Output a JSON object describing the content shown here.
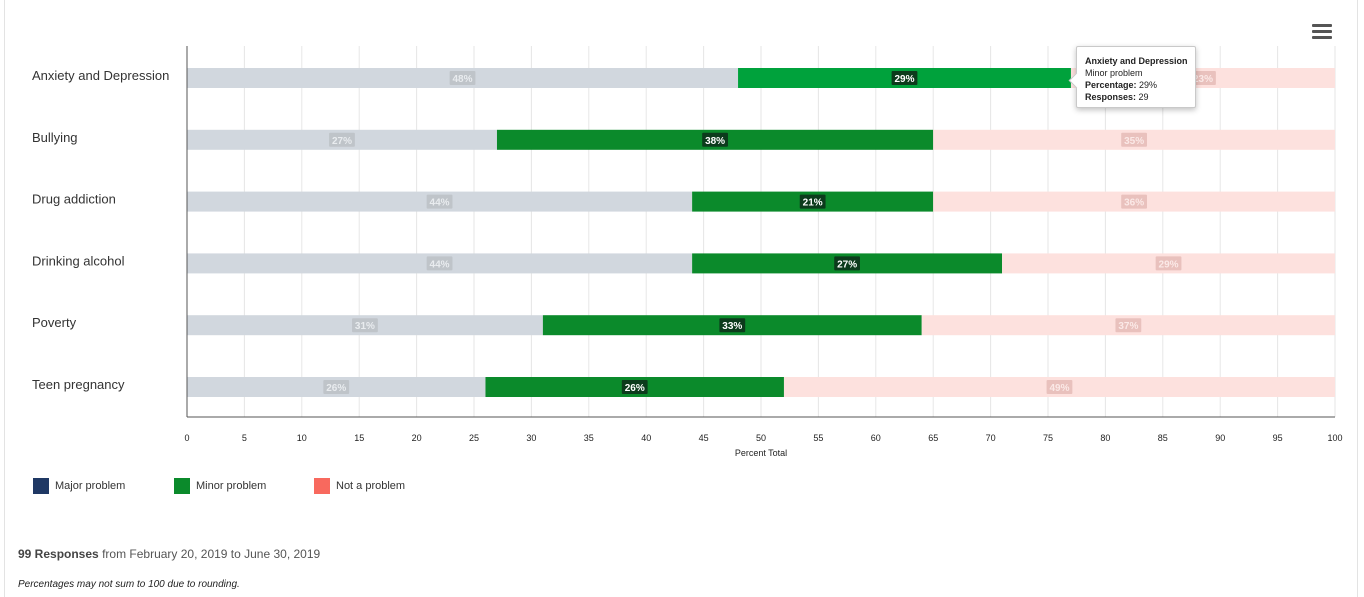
{
  "chart_data": {
    "type": "bar",
    "orientation": "horizontal",
    "stacked": true,
    "categories": [
      "Anxiety and Depression",
      "Bullying",
      "Drug addiction",
      "Drinking alcohol",
      "Poverty",
      "Teen pregnancy"
    ],
    "series": [
      {
        "name": "Major problem",
        "color": "#1f3864",
        "values": [
          48,
          27,
          44,
          44,
          31,
          26
        ],
        "labels": [
          "48%",
          "27%",
          "44%",
          "44%",
          "31%",
          "26%"
        ]
      },
      {
        "name": "Minor problem",
        "color": "#0b8a2b",
        "values": [
          29,
          38,
          21,
          27,
          33,
          26
        ],
        "labels": [
          "29%",
          "38%",
          "21%",
          "27%",
          "33%",
          "26%"
        ]
      },
      {
        "name": "Not a problem",
        "color": "#f8695e",
        "values": [
          23,
          35,
          36,
          29,
          37,
          49
        ],
        "labels": [
          "23%",
          "35%",
          "36%",
          "29%",
          "37%",
          "49%"
        ]
      }
    ],
    "xlabel": "Percent Total",
    "xlim": [
      0,
      100
    ],
    "xticks": [
      0,
      5,
      10,
      15,
      20,
      25,
      30,
      35,
      40,
      45,
      50,
      55,
      60,
      65,
      70,
      75,
      80,
      85,
      90,
      95,
      100
    ],
    "grid": true,
    "legend": "bottom-left",
    "highlighted_series": "Minor problem",
    "colors": {
      "dim_major": "#d1d7de",
      "dim_not": "#fde1de",
      "minor": "#0b8a2b",
      "minor_hover": "#00a23c",
      "dim_label_bg": "#bfc4c9",
      "dim_label_bg_not": "#e9c1bd",
      "active_label_bg": "#0c3b1c"
    }
  },
  "tooltip": {
    "title": "Anxiety and Depression",
    "series": "Minor problem",
    "percentage_label": "Percentage:",
    "percentage_value": "29%",
    "responses_label": "Responses:",
    "responses_value": "29"
  },
  "footer": {
    "responses_count": "99 Responses",
    "date_range": "from February 20, 2019 to June 30, 2019",
    "note": "Percentages may not sum to 100 due to rounding."
  },
  "menu": {
    "icon": "hamburger-menu-icon"
  }
}
